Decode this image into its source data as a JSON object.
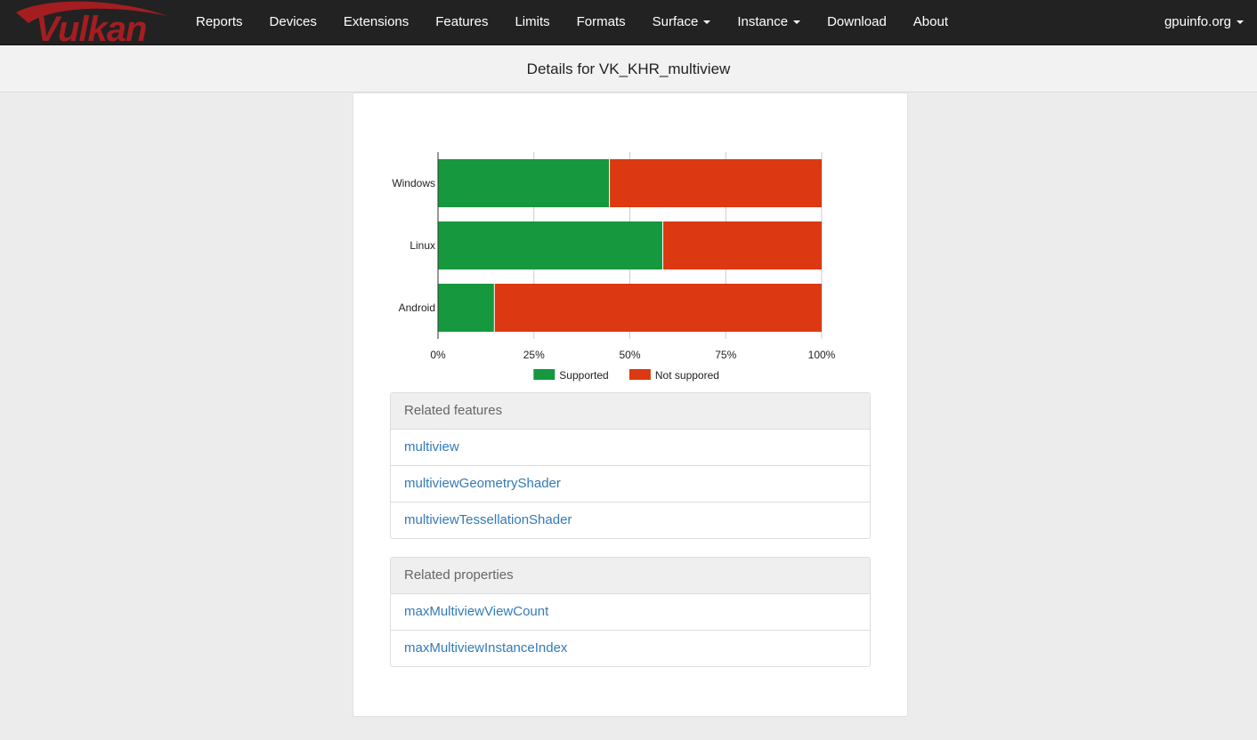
{
  "brand": {
    "logo_text": "Vulkan",
    "logo_color": "#a41d21"
  },
  "nav": {
    "items": [
      {
        "label": "Reports",
        "dropdown": false
      },
      {
        "label": "Devices",
        "dropdown": false
      },
      {
        "label": "Extensions",
        "dropdown": false
      },
      {
        "label": "Features",
        "dropdown": false
      },
      {
        "label": "Limits",
        "dropdown": false
      },
      {
        "label": "Formats",
        "dropdown": false
      },
      {
        "label": "Surface",
        "dropdown": true
      },
      {
        "label": "Instance",
        "dropdown": true
      },
      {
        "label": "Download",
        "dropdown": false
      },
      {
        "label": "About",
        "dropdown": false
      }
    ],
    "right": {
      "label": "gpuinfo.org",
      "dropdown": true
    }
  },
  "page": {
    "title": "Details for VK_KHR_multiview"
  },
  "chart_data": {
    "type": "bar",
    "orientation": "horizontal",
    "stacked": "percent",
    "categories": [
      "Windows",
      "Linux",
      "Android"
    ],
    "series": [
      {
        "name": "Supported",
        "color": "#16983e",
        "values": [
          44.8,
          58.7,
          14.8
        ]
      },
      {
        "name": "Not suppored",
        "color": "#dc3912",
        "values": [
          55.2,
          41.3,
          85.2
        ]
      }
    ],
    "xlim": [
      0,
      100
    ],
    "xticks": [
      "0%",
      "25%",
      "50%",
      "75%",
      "100%"
    ],
    "grid": true,
    "legend": "bottom"
  },
  "related_features": {
    "heading": "Related features",
    "items": [
      "multiview",
      "multiviewGeometryShader",
      "multiviewTessellationShader"
    ]
  },
  "related_properties": {
    "heading": "Related properties",
    "items": [
      "maxMultiviewViewCount",
      "maxMultiviewInstanceIndex"
    ]
  }
}
